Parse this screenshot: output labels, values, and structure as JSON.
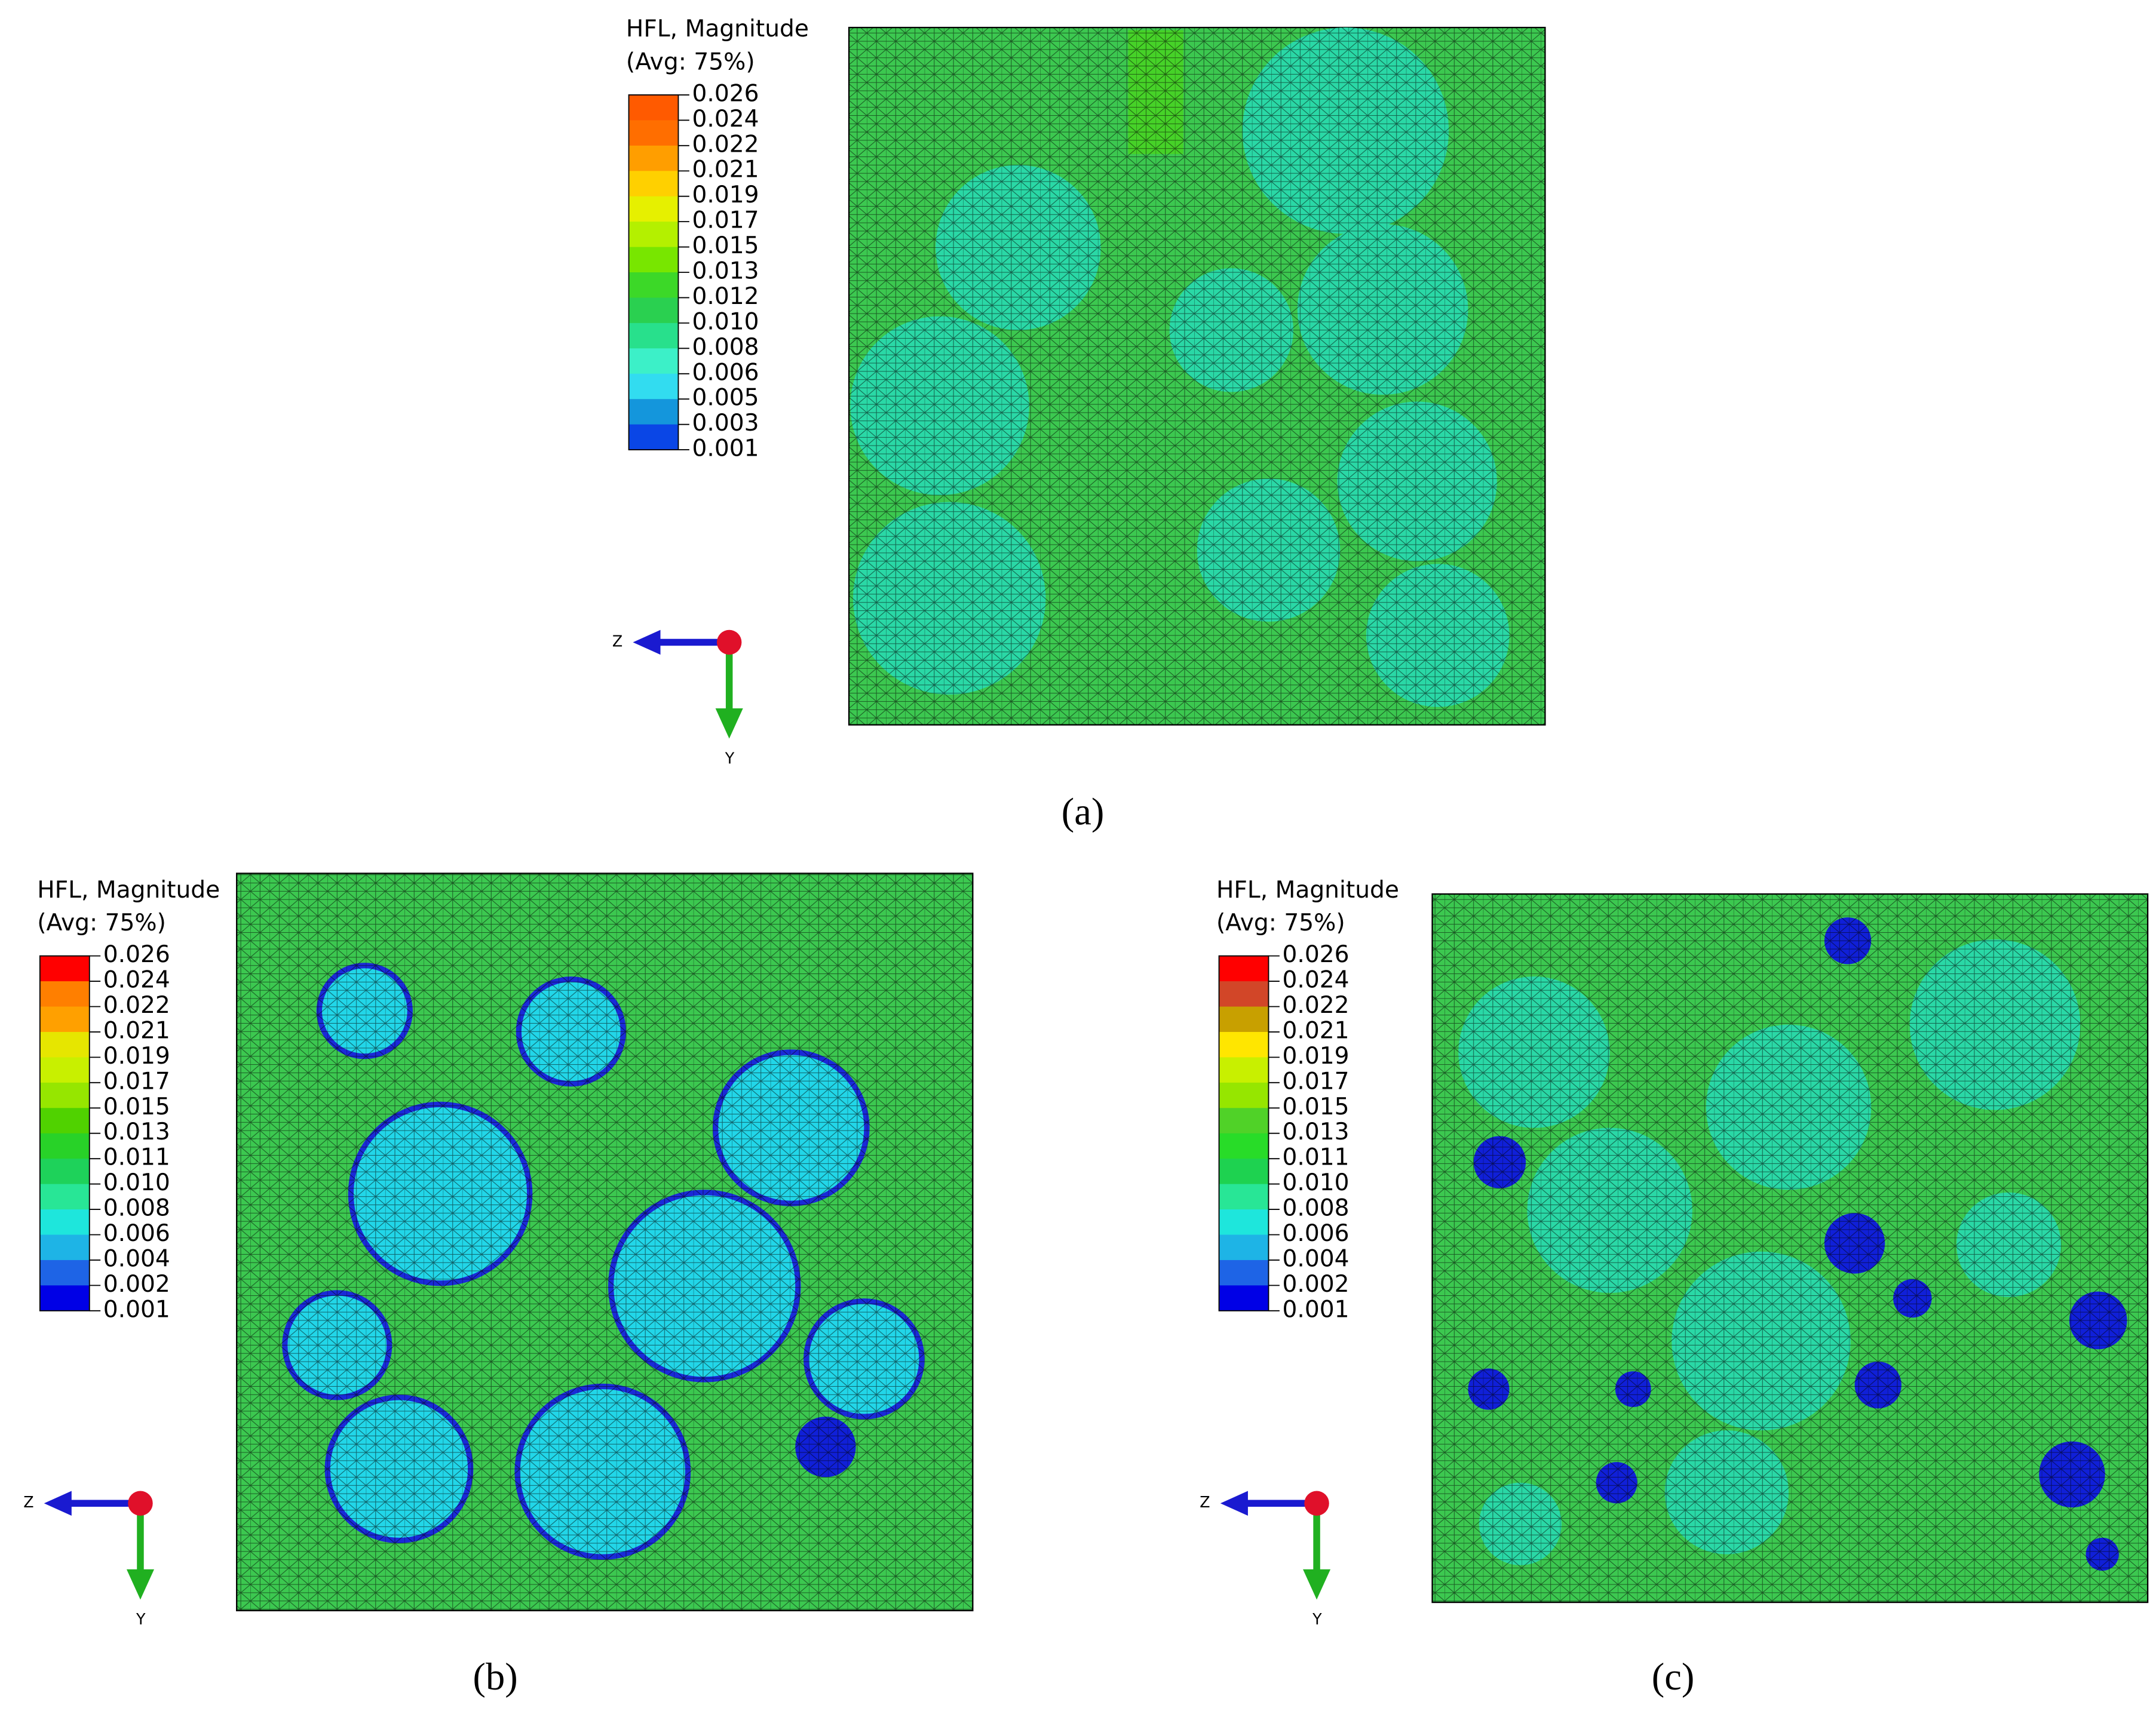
{
  "panels": [
    {
      "caption": "(a)",
      "legend": {
        "title_line1": "HFL, Magnitude",
        "title_line2": "(Avg: 75%)",
        "labels": [
          "0.026",
          "0.024",
          "0.022",
          "0.021",
          "0.019",
          "0.017",
          "0.015",
          "0.013",
          "0.012",
          "0.010",
          "0.008",
          "0.006",
          "0.005",
          "0.003",
          "0.001"
        ],
        "colors": [
          "#ff5a00",
          "#ff6e00",
          "#ff9e00",
          "#ffd000",
          "#e6f000",
          "#b4f000",
          "#78e600",
          "#3cd828",
          "#2ad050",
          "#28e08c",
          "#3cf0c8",
          "#32dcf0",
          "#1496dc",
          "#0a46e6"
        ]
      },
      "triad": {
        "horizontal": "Z",
        "vertical": "Y"
      }
    },
    {
      "caption": "(b)",
      "legend": {
        "title_line1": "HFL, Magnitude",
        "title_line2": "(Avg: 75%)",
        "labels": [
          "0.026",
          "0.024",
          "0.022",
          "0.021",
          "0.019",
          "0.017",
          "0.015",
          "0.013",
          "0.011",
          "0.010",
          "0.008",
          "0.006",
          "0.004",
          "0.002",
          "0.001"
        ],
        "colors": [
          "#ff0000",
          "#ff7f00",
          "#ffa000",
          "#e6e600",
          "#c8f000",
          "#96e600",
          "#50d200",
          "#28d228",
          "#1ed25a",
          "#28e696",
          "#1ee6dc",
          "#1eb4e6",
          "#1e64e6",
          "#0000e6"
        ]
      },
      "triad": {
        "horizontal": "Z",
        "vertical": "Y"
      }
    },
    {
      "caption": "(c)",
      "legend": {
        "title_line1": "HFL, Magnitude",
        "title_line2": "(Avg: 75%)",
        "labels": [
          "0.026",
          "0.024",
          "0.022",
          "0.021",
          "0.019",
          "0.017",
          "0.015",
          "0.013",
          "0.011",
          "0.010",
          "0.008",
          "0.006",
          "0.004",
          "0.002",
          "0.001"
        ],
        "colors": [
          "#ff0000",
          "#d24628",
          "#c8a000",
          "#ffe600",
          "#c8f000",
          "#96e600",
          "#50d228",
          "#28dc28",
          "#1ed250",
          "#28e696",
          "#1ee6dc",
          "#1eb4e6",
          "#1e64e6",
          "#0000e6"
        ]
      },
      "triad": {
        "horizontal": "Z",
        "vertical": "Y"
      }
    }
  ]
}
